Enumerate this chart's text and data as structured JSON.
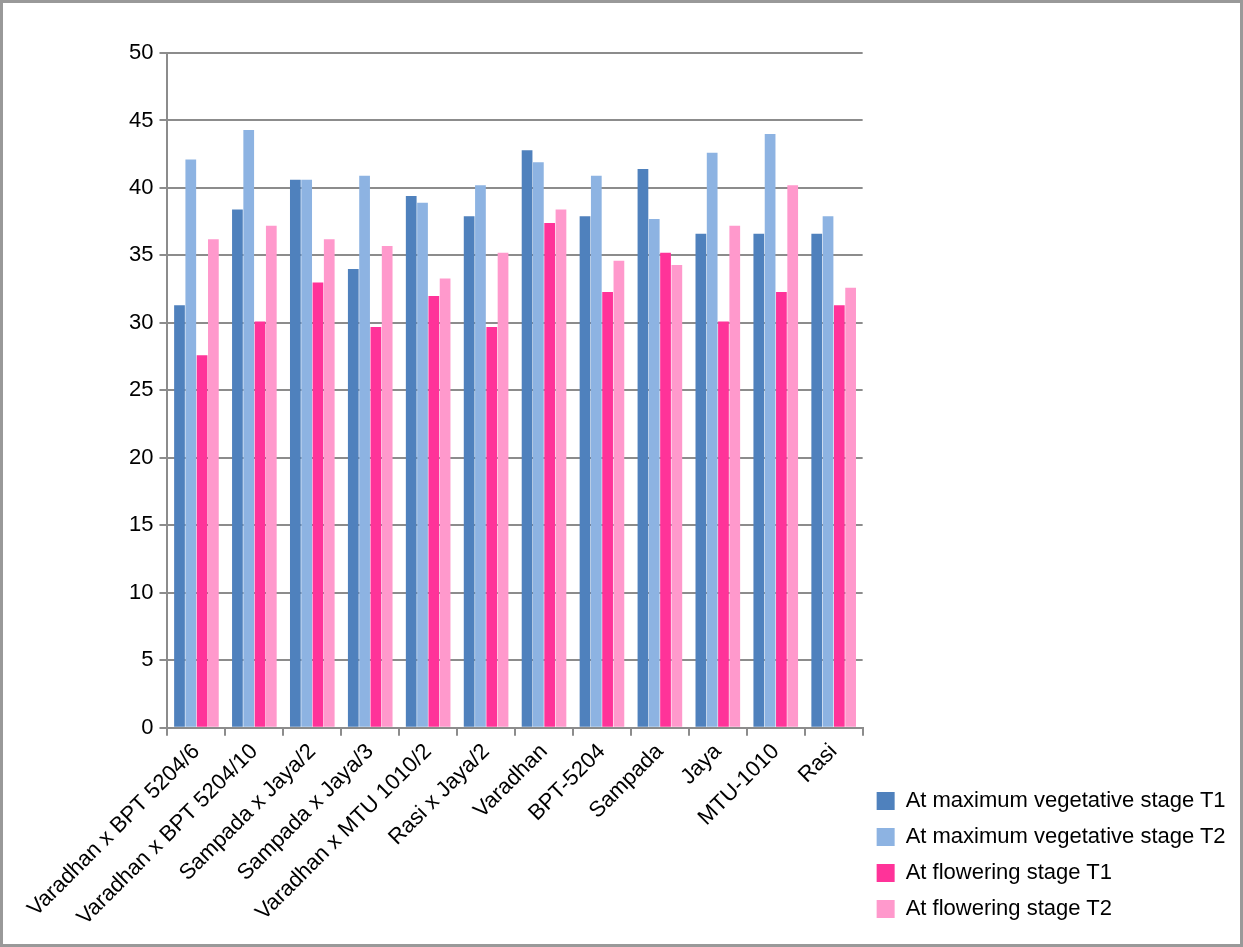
{
  "chart_data": {
    "type": "bar",
    "categories": [
      "Varadhan x BPT 5204/6",
      "Varadhan x BPT 5204/10",
      "Sampada x Jaya/2",
      "Sampada x Jaya/3",
      "Varadhan x MTU 1010/2",
      "Rasi x Jaya/2",
      "Varadhan",
      "BPT-5204",
      "Sampada",
      "Jaya",
      "MTU-1010",
      "Rasi"
    ],
    "series": [
      {
        "name": "At maximum vegetative stage T1",
        "color": "#4f81bd",
        "values": [
          31.3,
          38.4,
          40.6,
          34.0,
          39.4,
          37.9,
          42.8,
          37.9,
          41.4,
          36.6,
          36.6,
          36.6
        ]
      },
      {
        "name": "At maximum vegetative stage T2",
        "color": "#8db3e2",
        "values": [
          42.1,
          44.3,
          40.6,
          40.9,
          38.9,
          40.2,
          41.9,
          40.9,
          37.7,
          42.6,
          44.0,
          37.9
        ]
      },
      {
        "name": "At flowering stage T1",
        "color": "#ff3399",
        "values": [
          27.6,
          30.1,
          33.0,
          29.7,
          32.0,
          29.7,
          37.4,
          32.3,
          35.2,
          30.1,
          32.3,
          31.3
        ]
      },
      {
        "name": "At flowering stage T2",
        "color": "#ff99cc",
        "values": [
          36.2,
          37.2,
          36.2,
          35.7,
          33.3,
          35.2,
          38.4,
          34.6,
          34.3,
          37.2,
          40.2,
          32.6
        ]
      }
    ],
    "ylim": [
      0,
      50
    ],
    "yticks": [
      0,
      5,
      10,
      15,
      20,
      25,
      30,
      35,
      40,
      45,
      50
    ],
    "grid": "y",
    "legend": "bottom right"
  }
}
